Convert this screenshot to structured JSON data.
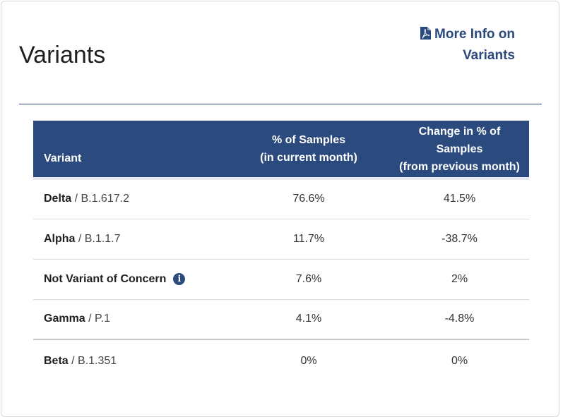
{
  "header": {
    "title": "Variants",
    "more_info_label": "More Info on Variants"
  },
  "table": {
    "columns": {
      "variant": "Variant",
      "pct_line1": "% of Samples",
      "pct_line2": "(in current month)",
      "change_line1": "Change in % of Samples",
      "change_line2": "(from previous month)"
    },
    "rows": [
      {
        "name": "Delta",
        "separator": " / ",
        "lineage": "B.1.617.2",
        "pct": "76.6%",
        "change": "41.5%"
      },
      {
        "name": "Alpha",
        "separator": " / ",
        "lineage": "B.1.1.7",
        "pct": "11.7%",
        "change": "-38.7%"
      },
      {
        "name": "Not Variant of Concern",
        "info_icon": "i",
        "pct": "7.6%",
        "change": "2%"
      },
      {
        "name": "Gamma",
        "separator": " / ",
        "lineage": "P.1",
        "pct": "4.1%",
        "change": "-4.8%"
      },
      {
        "name": "Beta",
        "separator": " / ",
        "lineage": "B.1.351",
        "pct": "0%",
        "change": "0%"
      }
    ]
  },
  "icons": {
    "more_info": "pdf-file-icon",
    "row_info": "info-circle-icon"
  },
  "colors": {
    "accent": "#2b4a7d",
    "header_text": "#ffffff"
  }
}
